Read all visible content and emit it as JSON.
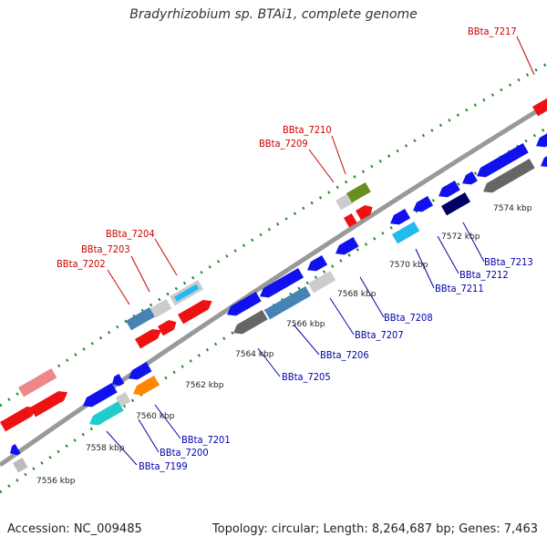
{
  "title": "Bradyrhizobium sp. BTAi1, complete genome",
  "footer": {
    "accession": "Accession: NC_009485",
    "topology": "Topology: circular; Length: 8,264,687 bp; Genes: 7,463"
  },
  "ticks": [
    "7556 kbp",
    "7558 kbp",
    "7560 kbp",
    "7562 kbp",
    "7564 kbp",
    "7566 kbp",
    "7568 kbp",
    "7570 kbp",
    "7572 kbp",
    "7574 kbp"
  ],
  "genes_red": [
    "BBta_7202",
    "BBta_7203",
    "BBta_7204",
    "BBta_7209",
    "BBta_7210",
    "BBta_7217"
  ],
  "genes_blue": [
    "BBta_7199",
    "BBta_7200",
    "BBta_7201",
    "BBta_7205",
    "BBta_7206",
    "BBta_7207",
    "BBta_7208",
    "BBta_7211",
    "BBta_7212",
    "BBta_7213"
  ],
  "colors": {
    "forward_strand": "#ee1111",
    "reverse_strand": "#1111ee",
    "label_red": "#cc0000",
    "label_blue": "#0000aa",
    "backbone": "#888888",
    "tick_dots": "#228b22"
  }
}
